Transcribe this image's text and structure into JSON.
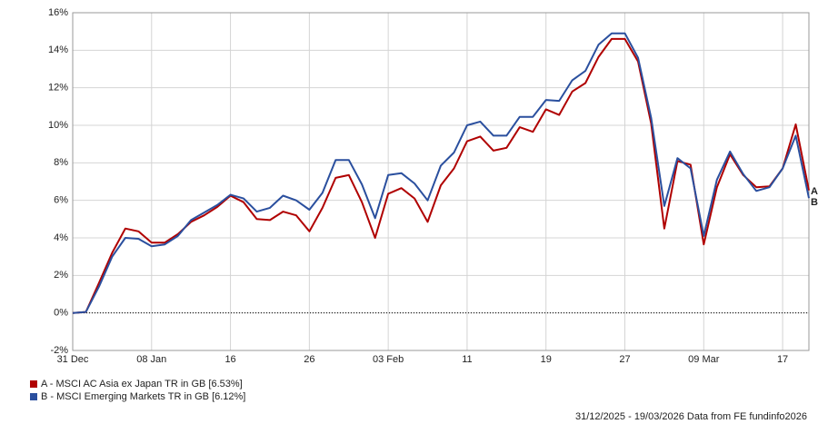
{
  "chart_data": {
    "type": "line",
    "categories": [
      "31 Dec",
      null,
      null,
      null,
      null,
      null,
      "08 Jan",
      null,
      null,
      null,
      null,
      null,
      "16",
      null,
      null,
      null,
      null,
      null,
      "26",
      null,
      null,
      null,
      null,
      null,
      "03 Feb",
      null,
      null,
      null,
      null,
      null,
      "11",
      null,
      null,
      null,
      null,
      null,
      "19",
      null,
      null,
      null,
      null,
      null,
      "27",
      null,
      null,
      null,
      null,
      null,
      "09 Mar",
      null,
      null,
      null,
      null,
      null,
      "17",
      null,
      null
    ],
    "series": [
      {
        "name": "A - MSCI AC Asia ex Japan TR in GB [6.53%]",
        "end_label": "A",
        "color": "#b00000",
        "values": [
          0,
          0.05,
          1.6,
          3.2,
          4.5,
          4.35,
          3.75,
          3.75,
          4.2,
          4.85,
          5.2,
          5.65,
          6.25,
          5.9,
          5.0,
          4.95,
          5.4,
          5.2,
          4.35,
          5.6,
          7.2,
          7.35,
          5.9,
          4.0,
          6.35,
          6.65,
          6.1,
          4.85,
          6.8,
          7.7,
          9.15,
          9.4,
          8.65,
          8.8,
          9.9,
          9.65,
          10.85,
          10.55,
          11.8,
          12.25,
          13.65,
          14.6,
          14.6,
          13.4,
          10.1,
          4.5,
          8.1,
          7.9,
          3.65,
          6.7,
          8.45,
          7.35,
          6.7,
          6.75,
          7.7,
          10.05,
          6.53
        ]
      },
      {
        "name": "B - MSCI Emerging Markets TR in GB [6.12%]",
        "end_label": "B",
        "color": "#2a4f9e",
        "values": [
          0,
          0.05,
          1.4,
          3.0,
          4.0,
          3.95,
          3.55,
          3.65,
          4.1,
          4.95,
          5.35,
          5.75,
          6.3,
          6.1,
          5.4,
          5.6,
          6.25,
          6.0,
          5.5,
          6.4,
          8.15,
          8.15,
          6.85,
          5.05,
          7.35,
          7.45,
          6.9,
          6.0,
          7.85,
          8.55,
          10.0,
          10.2,
          9.45,
          9.45,
          10.45,
          10.45,
          11.35,
          11.3,
          12.4,
          12.9,
          14.3,
          14.9,
          14.9,
          13.6,
          10.4,
          5.7,
          8.25,
          7.7,
          4.1,
          7.1,
          8.6,
          7.4,
          6.5,
          6.7,
          7.7,
          9.45,
          6.12
        ]
      }
    ],
    "ylim": [
      -2,
      16
    ],
    "yticks": [
      {
        "value": -2,
        "label": "-2%"
      },
      {
        "value": 0,
        "label": "0%"
      },
      {
        "value": 2,
        "label": "2%"
      },
      {
        "value": 4,
        "label": "4%"
      },
      {
        "value": 6,
        "label": "6%"
      },
      {
        "value": 8,
        "label": "8%"
      },
      {
        "value": 10,
        "label": "10%"
      },
      {
        "value": 12,
        "label": "12%"
      },
      {
        "value": 14,
        "label": "14%"
      },
      {
        "value": 16,
        "label": "16%"
      }
    ],
    "grid": true,
    "zero_line": true,
    "footer": "31/12/2025 - 19/03/2026 Data from FE fundinfo2026"
  }
}
